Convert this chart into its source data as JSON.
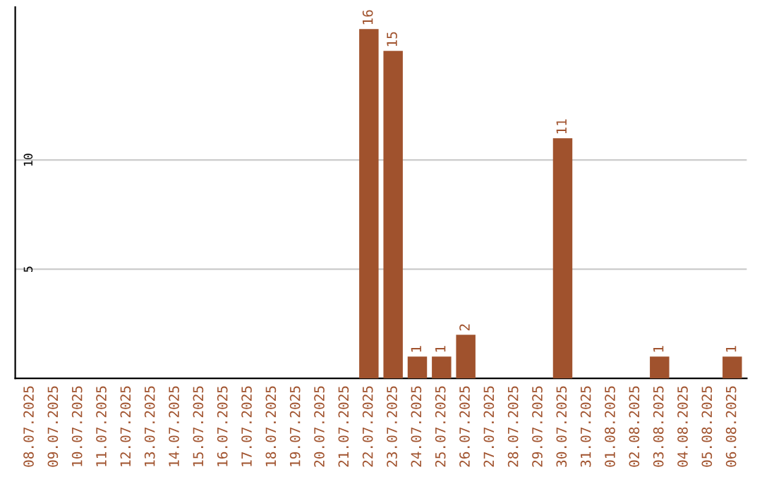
{
  "chart_data": {
    "type": "bar",
    "categories": [
      "08.07.2025",
      "09.07.2025",
      "10.07.2025",
      "11.07.2025",
      "12.07.2025",
      "13.07.2025",
      "14.07.2025",
      "15.07.2025",
      "16.07.2025",
      "17.07.2025",
      "18.07.2025",
      "19.07.2025",
      "20.07.2025",
      "21.07.2025",
      "22.07.2025",
      "23.07.2025",
      "24.07.2025",
      "25.07.2025",
      "26.07.2025",
      "27.07.2025",
      "28.07.2025",
      "29.07.2025",
      "30.07.2025",
      "31.07.2025",
      "01.08.2025",
      "02.08.2025",
      "03.08.2025",
      "04.08.2025",
      "05.08.2025",
      "06.08.2025"
    ],
    "values": [
      0,
      0,
      0,
      0,
      0,
      0,
      0,
      0,
      0,
      0,
      0,
      0,
      0,
      0,
      16,
      15,
      1,
      1,
      2,
      0,
      0,
      0,
      11,
      0,
      0,
      0,
      1,
      0,
      0,
      1
    ],
    "value_labels": [
      null,
      null,
      null,
      null,
      null,
      null,
      null,
      null,
      null,
      null,
      null,
      null,
      null,
      null,
      "16",
      "15",
      "1",
      "1",
      "2",
      null,
      null,
      null,
      "11",
      null,
      null,
      null,
      "1",
      null,
      null,
      "1"
    ],
    "color": "#a0522d",
    "ylim": [
      0,
      17
    ],
    "yticks": [
      5,
      10
    ],
    "grid": "y"
  }
}
